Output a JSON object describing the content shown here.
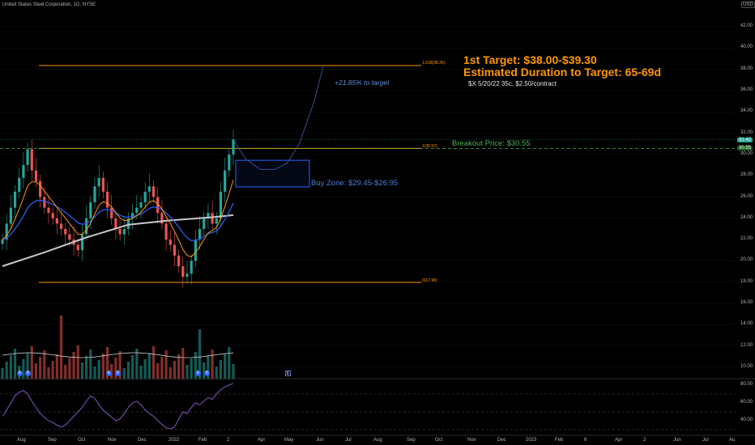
{
  "header": {
    "title": "United States Steel Corporation, 1D, NYSE",
    "currency_badge": "USD"
  },
  "annotations": {
    "first_target": "1st Target: $38.00-$39.30",
    "duration": "Estimated Duration to Target: 65-69d",
    "option_note": "$X 5/20/22 35c, $2.50/contract",
    "breakout": "Breakout Price: $30.55",
    "buy_zone": "Buy Zone: $29.45-$26.95",
    "target_pct": "+21.85% to target"
  },
  "fib_labels": {
    "top": "1.618(38.35)",
    "mid": "1(30.57)",
    "bottom": "0(17.98)"
  },
  "price_axis": [
    "42.00",
    "40.00",
    "38.00",
    "36.00",
    "34.00",
    "32.00",
    "30.00",
    "28.00",
    "26.00",
    "24.00",
    "22.00",
    "20.00",
    "18.00",
    "16.00",
    "14.00",
    "12.00",
    "10.00"
  ],
  "price_boxes": {
    "last": "31.42",
    "breakout": "30.55"
  },
  "rsi_axis": [
    "80.00",
    "60.00",
    "40.00"
  ],
  "time_axis": [
    "Aug",
    "Sep",
    "Oct",
    "Nov",
    "Dec",
    "2022",
    "Feb",
    "2",
    "Apr",
    "May",
    "Jun",
    "Jul",
    "Aug",
    "Sep",
    "Oct",
    "Nov",
    "Dec",
    "2023",
    "Feb",
    "6",
    "Apr",
    "2",
    "Jun",
    "Jul",
    "Au"
  ],
  "colors": {
    "background": "#000000",
    "up": "#26a69a",
    "down": "#ef5350",
    "fib": "#ff9800",
    "breakout": "#4caf50",
    "buyzone": "#2962ff",
    "ma_long": "#c8c8c8",
    "ma_blue": "#2962ff",
    "ma_orange": "#ff9800",
    "rsi": "#7e57c2"
  },
  "chart_data": {
    "type": "candlestick",
    "x_axis": [
      "Aug",
      "Sep",
      "Oct",
      "Nov",
      "Dec",
      "2022",
      "Feb",
      "2"
    ],
    "closes": [
      22.0,
      23.5,
      25.0,
      26.5,
      27.8,
      29.0,
      30.5,
      28.5,
      27.5,
      26.0,
      25.0,
      24.5,
      24.0,
      23.5,
      23.0,
      22.5,
      22.0,
      21.5,
      21.0,
      22.5,
      24.0,
      25.5,
      27.0,
      27.8,
      26.5,
      25.0,
      24.0,
      23.0,
      22.5,
      23.0,
      24.0,
      24.5,
      25.0,
      25.5,
      26.5,
      27.0,
      26.0,
      24.5,
      23.5,
      22.0,
      21.5,
      20.5,
      19.5,
      18.5,
      18.8,
      20.0,
      22.0,
      23.0,
      24.0,
      24.5,
      23.5,
      24.0,
      26.5,
      28.5,
      30.0,
      31.42
    ],
    "ylim": [
      9.0,
      43.5
    ],
    "levels": {
      "fib_1618": 38.35,
      "fib_1": 30.57,
      "fib_0": 17.98,
      "breakout": 30.55,
      "buy_zone": [
        26.95,
        29.45
      ],
      "target": [
        38.0,
        39.3
      ]
    },
    "projection": [
      [
        0,
        31.42
      ],
      [
        4,
        29.6
      ],
      [
        9,
        28.6
      ],
      [
        14,
        28.6
      ],
      [
        18,
        29.2
      ],
      [
        22,
        31.0
      ],
      [
        27,
        35.0
      ],
      [
        30,
        38.3
      ]
    ],
    "rsi": [
      45,
      52,
      60,
      68,
      72,
      74,
      70,
      62,
      55,
      48,
      44,
      40,
      38,
      35,
      33,
      35,
      40,
      45,
      50,
      55,
      62,
      68,
      65,
      58,
      52,
      48,
      44,
      40,
      42,
      48,
      55,
      60,
      62,
      58,
      52,
      48,
      45,
      40,
      36,
      32,
      31,
      33,
      42,
      50,
      48,
      55,
      60,
      58,
      62,
      66,
      64,
      70,
      75,
      78,
      80,
      82
    ],
    "ma_long": [
      [
        0,
        19.5
      ],
      [
        10,
        20.8
      ],
      [
        20,
        22.2
      ],
      [
        30,
        23.4
      ],
      [
        40,
        23.8
      ],
      [
        50,
        24.1
      ],
      [
        55,
        24.3
      ]
    ]
  }
}
